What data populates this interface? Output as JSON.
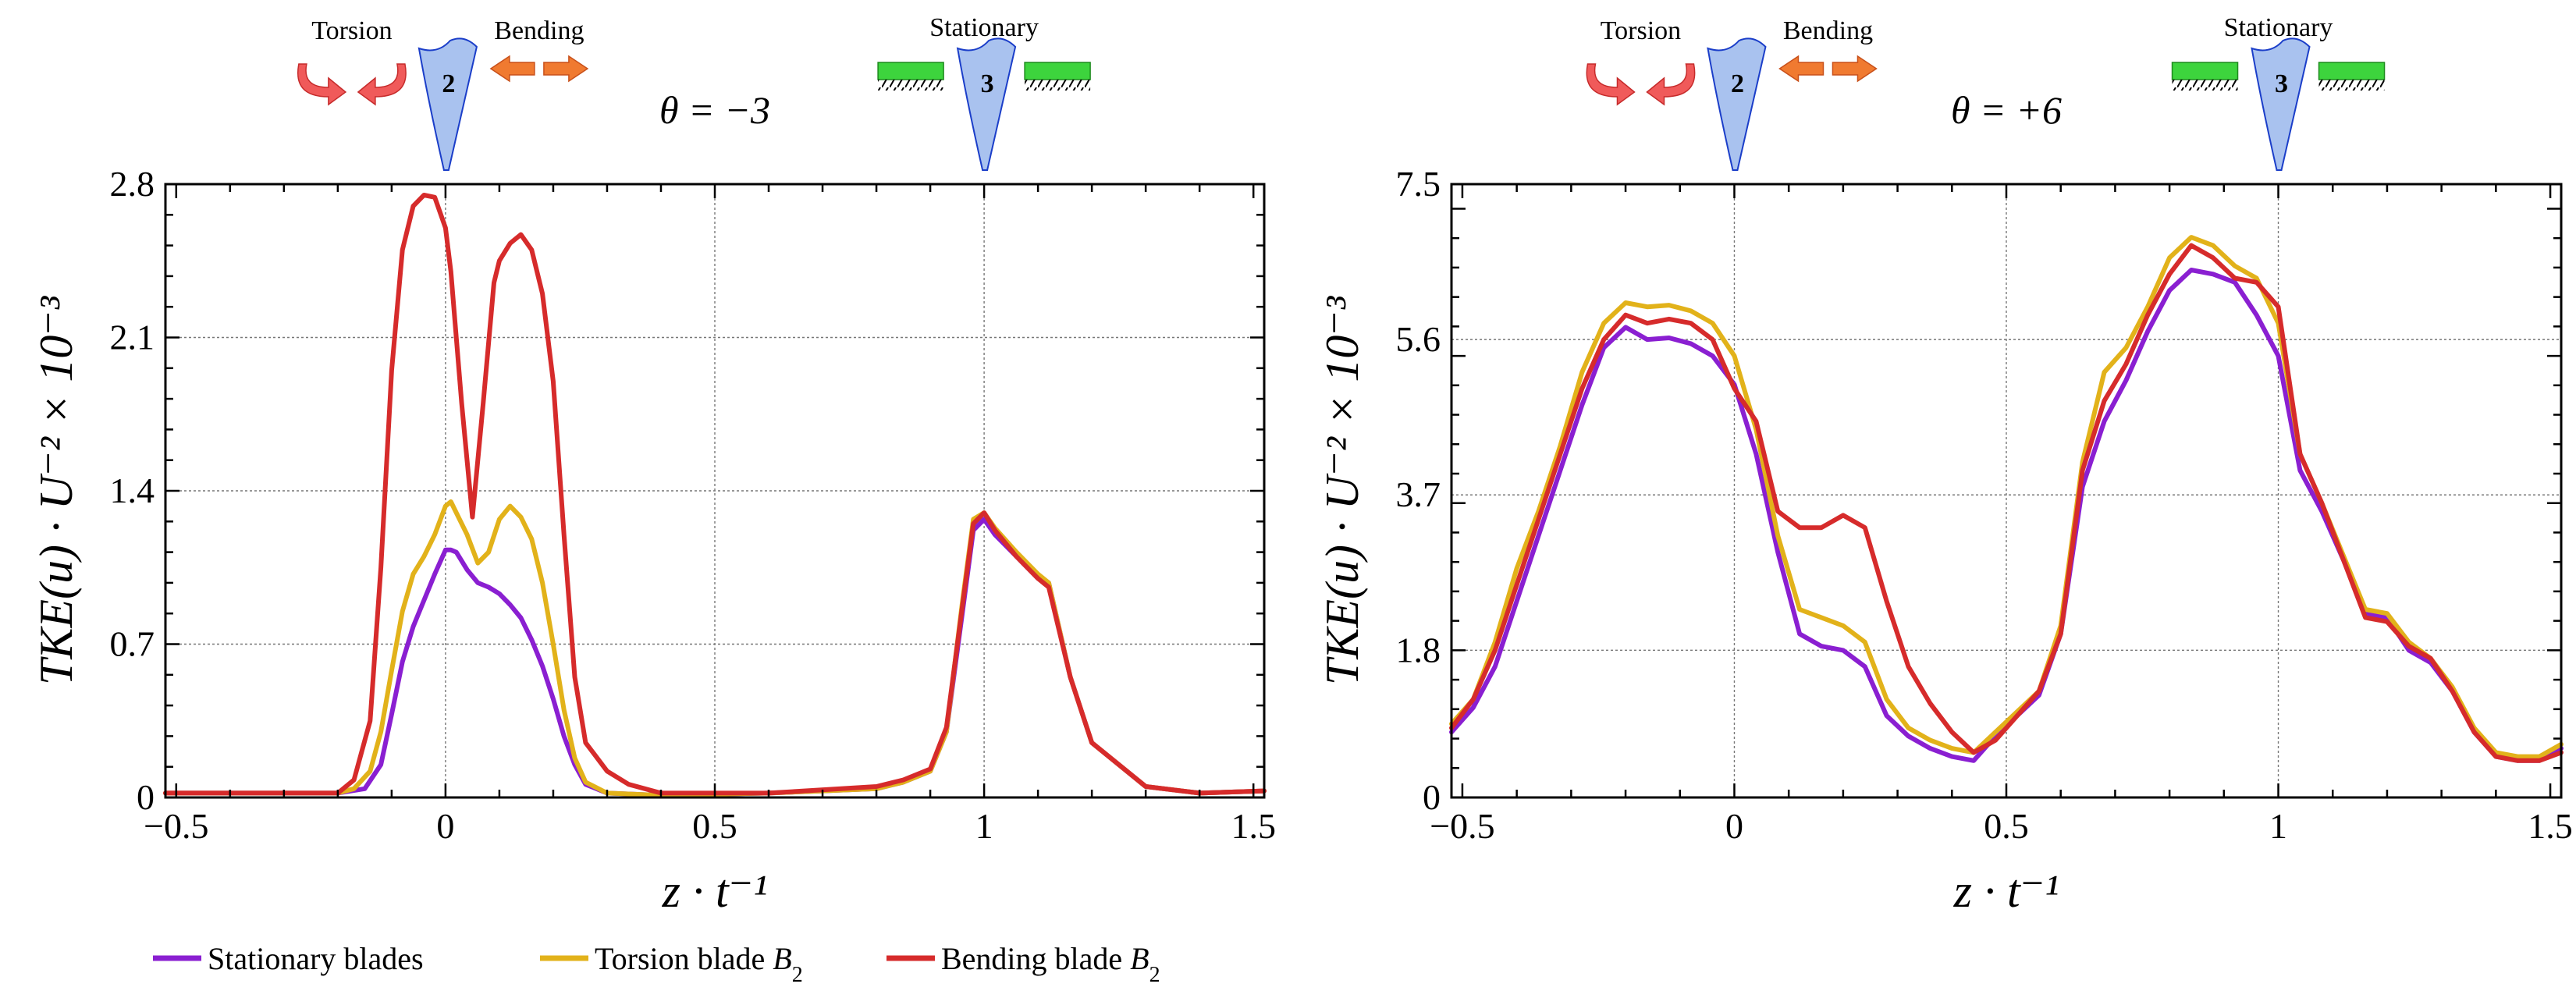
{
  "figure": {
    "legend": [
      {
        "label": "Stationary blades",
        "color": "#8a1fd1"
      },
      {
        "label": "Torsion blade ",
        "sub_label": "B",
        "subscript": "2",
        "color": "#e2b21a"
      },
      {
        "label": "Bending blade ",
        "sub_label": "B",
        "subscript": "2",
        "color": "#d62b2b"
      }
    ]
  },
  "annotations": {
    "torsion": "Torsion",
    "bending": "Bending",
    "stationary": "Stationary",
    "blade_2": "2",
    "blade_3": "3"
  },
  "chart_data": [
    {
      "type": "line",
      "theta_label": "θ = −3",
      "xlabel": "z · t⁻¹",
      "ylabel": "TKE(u) · U⁻² × 10⁻³",
      "xlim": [
        -0.52,
        1.52
      ],
      "ylim": [
        0,
        2.8
      ],
      "xticks": [
        -0.5,
        0,
        0.5,
        1,
        1.5
      ],
      "xtick_labels": [
        "−0.5",
        "0",
        "0.5",
        "1",
        "1.5"
      ],
      "yticks": [
        0,
        0.7,
        1.4,
        2.1,
        2.8
      ],
      "ytick_labels": [
        "0",
        "0.7",
        "1.4",
        "2.1",
        "2.8"
      ],
      "grid": true,
      "series": [
        {
          "name": "Stationary blades",
          "color": "#8a1fd1",
          "x": [
            -0.52,
            -0.3,
            -0.2,
            -0.15,
            -0.12,
            -0.1,
            -0.08,
            -0.06,
            -0.04,
            -0.02,
            0,
            0.01,
            0.02,
            0.04,
            0.06,
            0.08,
            0.1,
            0.12,
            0.14,
            0.16,
            0.18,
            0.2,
            0.22,
            0.24,
            0.26,
            0.3,
            0.4,
            0.6,
            0.8,
            0.85,
            0.9,
            0.93,
            0.96,
            0.98,
            1.0,
            1.02,
            1.06,
            1.1,
            1.12,
            1.16,
            1.2,
            1.3,
            1.4,
            1.52
          ],
          "y": [
            0.02,
            0.02,
            0.02,
            0.04,
            0.15,
            0.38,
            0.62,
            0.78,
            0.9,
            1.02,
            1.13,
            1.13,
            1.12,
            1.04,
            0.98,
            0.96,
            0.93,
            0.88,
            0.82,
            0.72,
            0.6,
            0.45,
            0.28,
            0.15,
            0.06,
            0.02,
            0.01,
            0.02,
            0.04,
            0.07,
            0.12,
            0.3,
            0.85,
            1.22,
            1.27,
            1.2,
            1.1,
            1.0,
            0.98,
            0.55,
            0.25,
            0.05,
            0.02,
            0.03
          ]
        },
        {
          "name": "Torsion blade B2",
          "color": "#e2b21a",
          "x": [
            -0.52,
            -0.3,
            -0.2,
            -0.17,
            -0.14,
            -0.12,
            -0.1,
            -0.08,
            -0.06,
            -0.04,
            -0.02,
            0,
            0.01,
            0.02,
            0.04,
            0.06,
            0.08,
            0.1,
            0.12,
            0.14,
            0.16,
            0.18,
            0.2,
            0.22,
            0.24,
            0.26,
            0.3,
            0.4,
            0.6,
            0.8,
            0.85,
            0.9,
            0.93,
            0.96,
            0.98,
            1.0,
            1.02,
            1.06,
            1.1,
            1.12,
            1.16,
            1.2,
            1.3,
            1.4,
            1.52
          ],
          "y": [
            0.02,
            0.02,
            0.02,
            0.04,
            0.12,
            0.3,
            0.58,
            0.85,
            1.02,
            1.1,
            1.2,
            1.33,
            1.35,
            1.3,
            1.2,
            1.07,
            1.12,
            1.27,
            1.33,
            1.28,
            1.18,
            0.98,
            0.7,
            0.4,
            0.18,
            0.07,
            0.02,
            0.01,
            0.02,
            0.04,
            0.07,
            0.12,
            0.3,
            0.9,
            1.27,
            1.3,
            1.23,
            1.12,
            1.02,
            0.98,
            0.55,
            0.25,
            0.05,
            0.02,
            0.03
          ]
        },
        {
          "name": "Bending blade B2",
          "color": "#d62b2b",
          "x": [
            -0.52,
            -0.3,
            -0.2,
            -0.17,
            -0.14,
            -0.13,
            -0.12,
            -0.1,
            -0.08,
            -0.06,
            -0.04,
            -0.02,
            0,
            0.01,
            0.02,
            0.03,
            0.05,
            0.07,
            0.09,
            0.1,
            0.12,
            0.14,
            0.16,
            0.18,
            0.2,
            0.22,
            0.24,
            0.26,
            0.3,
            0.34,
            0.4,
            0.6,
            0.8,
            0.85,
            0.9,
            0.93,
            0.96,
            0.98,
            1.0,
            1.02,
            1.06,
            1.1,
            1.12,
            1.16,
            1.2,
            1.3,
            1.4,
            1.52
          ],
          "y": [
            0.02,
            0.02,
            0.02,
            0.08,
            0.35,
            0.7,
            1.05,
            1.95,
            2.5,
            2.7,
            2.75,
            2.74,
            2.6,
            2.4,
            2.1,
            1.8,
            1.28,
            1.8,
            2.35,
            2.45,
            2.53,
            2.57,
            2.5,
            2.3,
            1.9,
            1.2,
            0.55,
            0.25,
            0.12,
            0.06,
            0.02,
            0.02,
            0.05,
            0.08,
            0.13,
            0.32,
            0.88,
            1.25,
            1.3,
            1.22,
            1.1,
            1.0,
            0.96,
            0.55,
            0.25,
            0.05,
            0.02,
            0.03
          ]
        }
      ]
    },
    {
      "type": "line",
      "theta_label": "θ = +6",
      "xlabel": "z · t⁻¹",
      "ylabel": "TKE(u) · U⁻² × 10⁻³",
      "xlim": [
        -0.52,
        1.52
      ],
      "ylim": [
        0,
        7.5
      ],
      "xticks": [
        -0.5,
        0,
        0.5,
        1,
        1.5
      ],
      "xtick_labels": [
        "−0.5",
        "0",
        "0.5",
        "1",
        "1.5"
      ],
      "yticks": [
        0,
        1.8,
        3.7,
        5.6,
        7.5
      ],
      "ytick_labels": [
        "0",
        "1.8",
        "3.7",
        "5.6",
        "7.5"
      ],
      "grid": true,
      "series": [
        {
          "name": "Stationary blades",
          "color": "#8a1fd1",
          "x": [
            -0.52,
            -0.48,
            -0.44,
            -0.4,
            -0.36,
            -0.32,
            -0.28,
            -0.24,
            -0.2,
            -0.16,
            -0.12,
            -0.08,
            -0.04,
            0,
            0.04,
            0.08,
            0.12,
            0.16,
            0.2,
            0.24,
            0.28,
            0.32,
            0.36,
            0.4,
            0.44,
            0.48,
            0.52,
            0.56,
            0.6,
            0.64,
            0.68,
            0.72,
            0.76,
            0.8,
            0.84,
            0.88,
            0.92,
            0.96,
            1.0,
            1.04,
            1.08,
            1.12,
            1.16,
            1.2,
            1.24,
            1.28,
            1.32,
            1.36,
            1.4,
            1.44,
            1.48,
            1.52
          ],
          "y": [
            0.8,
            1.1,
            1.6,
            2.4,
            3.2,
            4.0,
            4.8,
            5.5,
            5.75,
            5.6,
            5.62,
            5.55,
            5.4,
            5.05,
            4.2,
            3.0,
            2.0,
            1.85,
            1.8,
            1.6,
            1.0,
            0.75,
            0.6,
            0.5,
            0.45,
            0.75,
            1.0,
            1.25,
            2.0,
            3.8,
            4.6,
            5.1,
            5.7,
            6.2,
            6.45,
            6.4,
            6.3,
            5.9,
            5.4,
            4.0,
            3.5,
            2.9,
            2.25,
            2.2,
            1.8,
            1.65,
            1.3,
            0.8,
            0.5,
            0.45,
            0.45,
            0.6
          ]
        },
        {
          "name": "Torsion blade B2",
          "color": "#e2b21a",
          "x": [
            -0.52,
            -0.48,
            -0.44,
            -0.4,
            -0.36,
            -0.32,
            -0.28,
            -0.24,
            -0.2,
            -0.16,
            -0.12,
            -0.08,
            -0.04,
            0,
            0.04,
            0.08,
            0.12,
            0.16,
            0.2,
            0.24,
            0.28,
            0.32,
            0.36,
            0.4,
            0.44,
            0.48,
            0.52,
            0.56,
            0.6,
            0.64,
            0.68,
            0.72,
            0.76,
            0.8,
            0.84,
            0.88,
            0.92,
            0.96,
            1.0,
            1.04,
            1.08,
            1.12,
            1.16,
            1.2,
            1.24,
            1.28,
            1.32,
            1.36,
            1.4,
            1.44,
            1.48,
            1.52
          ],
          "y": [
            0.9,
            1.2,
            1.9,
            2.8,
            3.5,
            4.3,
            5.2,
            5.8,
            6.05,
            6.0,
            6.02,
            5.95,
            5.8,
            5.4,
            4.5,
            3.2,
            2.3,
            2.2,
            2.1,
            1.9,
            1.2,
            0.85,
            0.7,
            0.6,
            0.55,
            0.8,
            1.05,
            1.3,
            2.1,
            4.1,
            5.2,
            5.5,
            6.0,
            6.6,
            6.85,
            6.75,
            6.5,
            6.35,
            5.8,
            4.2,
            3.6,
            2.95,
            2.3,
            2.25,
            1.9,
            1.7,
            1.35,
            0.85,
            0.55,
            0.5,
            0.5,
            0.65
          ]
        },
        {
          "name": "Bending blade B2",
          "color": "#d62b2b",
          "x": [
            -0.52,
            -0.48,
            -0.44,
            -0.4,
            -0.36,
            -0.32,
            -0.28,
            -0.24,
            -0.2,
            -0.16,
            -0.12,
            -0.08,
            -0.04,
            0,
            0.04,
            0.08,
            0.12,
            0.16,
            0.2,
            0.24,
            0.28,
            0.32,
            0.36,
            0.4,
            0.44,
            0.48,
            0.52,
            0.56,
            0.6,
            0.64,
            0.68,
            0.72,
            0.76,
            0.8,
            0.84,
            0.88,
            0.92,
            0.96,
            1.0,
            1.04,
            1.08,
            1.12,
            1.16,
            1.2,
            1.24,
            1.28,
            1.32,
            1.36,
            1.4,
            1.44,
            1.48,
            1.52
          ],
          "y": [
            0.85,
            1.2,
            1.8,
            2.6,
            3.4,
            4.2,
            5.0,
            5.6,
            5.9,
            5.8,
            5.85,
            5.8,
            5.6,
            5.0,
            4.6,
            3.5,
            3.3,
            3.3,
            3.45,
            3.3,
            2.4,
            1.6,
            1.15,
            0.8,
            0.55,
            0.7,
            1.0,
            1.3,
            2.0,
            4.0,
            4.85,
            5.3,
            5.9,
            6.4,
            6.75,
            6.6,
            6.35,
            6.3,
            6.0,
            4.2,
            3.6,
            2.9,
            2.2,
            2.15,
            1.85,
            1.7,
            1.3,
            0.8,
            0.5,
            0.45,
            0.45,
            0.55
          ]
        }
      ]
    }
  ]
}
